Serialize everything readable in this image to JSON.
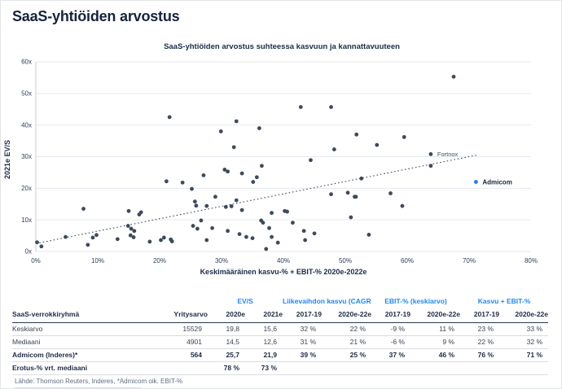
{
  "title": "SaaS-yhtiöiden arvostus",
  "colors": {
    "title_navy": "#16233e",
    "point": "#3e4a5c",
    "admicom_blue": "#1f7cf2",
    "table_header_blue": "#1e88f5",
    "gridline": "#e7eaf1",
    "axis_line": "#c8cdd7"
  },
  "chart_data": [
    {
      "type": "scatter",
      "title": "SaaS-yhtiöiden arvostus suhteessa kasvuun ja kannattavuuteen",
      "xlabel": "Keskimääräinen kasvu-% + EBIT-% 2020e-2022e",
      "ylabel": "2021e EV/S",
      "xlim": [
        0,
        80
      ],
      "ylim": [
        0,
        60
      ],
      "x_tick_values": [
        0,
        10,
        20,
        30,
        40,
        50,
        60,
        70,
        80
      ],
      "x_tick_labels": [
        "0%",
        "10%",
        "20%",
        "30%",
        "40%",
        "50%",
        "60%",
        "70%",
        "80%"
      ],
      "y_tick_values": [
        0,
        10,
        20,
        30,
        40,
        50,
        60
      ],
      "y_tick_labels": [
        "0x",
        "10x",
        "20x",
        "30x",
        "40x",
        "50x",
        "60x"
      ],
      "grid": "horizontal",
      "legend": "none",
      "point_color": "#3e4a5c",
      "series": [
        {
          "name": "SaaS-verrokkiryhmä",
          "points": [
            [
              0.2,
              2.9
            ],
            [
              0.9,
              1.6
            ],
            [
              4.8,
              4.6
            ],
            [
              7.7,
              13.5
            ],
            [
              8.4,
              2.1
            ],
            [
              9.2,
              4.4
            ],
            [
              9.8,
              5.2
            ],
            [
              13.2,
              3.9
            ],
            [
              14.9,
              8.1
            ],
            [
              15.0,
              12.8
            ],
            [
              15.3,
              5.1
            ],
            [
              15.4,
              7.2
            ],
            [
              15.8,
              4.5
            ],
            [
              15.9,
              6.5
            ],
            [
              16.7,
              11.7
            ],
            [
              17.0,
              12.4
            ],
            [
              18.4,
              3.1
            ],
            [
              20.2,
              3.6
            ],
            [
              20.7,
              4.4
            ],
            [
              21.1,
              22.2
            ],
            [
              21.6,
              42.5
            ],
            [
              21.8,
              3.8
            ],
            [
              22.0,
              3.2
            ],
            [
              23.7,
              21.8
            ],
            [
              25.2,
              19.8
            ],
            [
              25.4,
              8.1
            ],
            [
              25.7,
              15.8
            ],
            [
              25.9,
              14.5
            ],
            [
              26.1,
              7.2
            ],
            [
              26.7,
              9.8
            ],
            [
              27.1,
              24.1
            ],
            [
              27.6,
              14.4
            ],
            [
              27.6,
              3.6
            ],
            [
              28.5,
              7.4
            ],
            [
              29.0,
              17.3
            ],
            [
              29.9,
              38.0
            ],
            [
              30.5,
              25.9
            ],
            [
              30.7,
              14.1
            ],
            [
              31.0,
              25.3
            ],
            [
              31.0,
              6.5
            ],
            [
              31.6,
              14.3
            ],
            [
              32.0,
              33.0
            ],
            [
              32.4,
              41.2
            ],
            [
              32.4,
              16.2
            ],
            [
              32.9,
              5.5
            ],
            [
              33.3,
              24.7
            ],
            [
              33.3,
              13.1
            ],
            [
              34.0,
              4.6
            ],
            [
              35.0,
              4.2
            ],
            [
              35.1,
              22.0
            ],
            [
              35.7,
              23.5
            ],
            [
              36.1,
              39.0
            ],
            [
              36.4,
              9.8
            ],
            [
              36.5,
              27.1
            ],
            [
              36.7,
              9.1
            ],
            [
              37.2,
              0.8
            ],
            [
              37.7,
              7.4
            ],
            [
              38.1,
              12.2
            ],
            [
              38.1,
              4.6
            ],
            [
              39.1,
              2.8
            ],
            [
              40.2,
              12.8
            ],
            [
              40.6,
              12.6
            ],
            [
              41.5,
              9.1
            ],
            [
              42.8,
              45.7
            ],
            [
              43.3,
              6.5
            ],
            [
              43.5,
              3.6
            ],
            [
              44.4,
              28.9
            ],
            [
              45.0,
              5.7
            ],
            [
              47.7,
              45.7
            ],
            [
              47.7,
              18.1
            ],
            [
              48.2,
              32.3
            ],
            [
              50.4,
              18.6
            ],
            [
              50.9,
              10.8
            ],
            [
              51.5,
              17.3
            ],
            [
              51.7,
              17.3
            ],
            [
              51.8,
              37.0
            ],
            [
              52.6,
              23.1
            ],
            [
              53.8,
              5.3
            ],
            [
              55.1,
              33.7
            ],
            [
              57.3,
              18.4
            ],
            [
              59.2,
              14.4
            ],
            [
              59.5,
              36.2
            ],
            [
              63.8,
              27.1
            ],
            [
              67.5,
              55.3
            ]
          ]
        }
      ],
      "annotations": [
        {
          "label": "Fortnox",
          "x": 63.8,
          "y": 30.8,
          "color": "#3e4a5c",
          "bold": false
        },
        {
          "label": "Admicom",
          "x": 71.1,
          "y": 22.0,
          "color": "#1f7cf2",
          "bold": true
        }
      ],
      "trendline": {
        "x1": 0,
        "y1": 2.5,
        "x2": 71.5,
        "y2": 30.6,
        "style": "dotted"
      }
    },
    {
      "type": "table",
      "group_headers": [
        {
          "label": "",
          "span": 2
        },
        {
          "label": "EV/S",
          "span": 2
        },
        {
          "label": "Liikevaihdon kasvu (CAGR)",
          "span": 2
        },
        {
          "label": "EBIT-% (keskiarvo)",
          "span": 2
        },
        {
          "label": "Kasvu + EBIT-%",
          "span": 2
        }
      ],
      "columns": [
        "SaaS-verrokkiryhmä",
        "Yritysarvo",
        "2020e",
        "2021e",
        "2017-19",
        "2020e-22e",
        "2017-19",
        "2020e-22e",
        "2017-19",
        "2020e-22e"
      ],
      "rows": [
        {
          "label": "Keskiarvo",
          "values": [
            "15529",
            "19,8",
            "15,6",
            "32 %",
            "22 %",
            "-9 %",
            "11 %",
            "23 %",
            "33 %"
          ],
          "bold": false
        },
        {
          "label": "Mediaani",
          "values": [
            "4901",
            "14,5",
            "12,6",
            "31 %",
            "21 %",
            "-6 %",
            "9 %",
            "22 %",
            "32 %"
          ],
          "bold": false
        },
        {
          "label": "Admicom (Inderes)*",
          "values": [
            "564",
            "25,7",
            "21,9",
            "39 %",
            "25 %",
            "37 %",
            "46 %",
            "76 %",
            "71 %"
          ],
          "bold": true
        },
        {
          "label": "Erotus-% vrt. mediaani",
          "values": [
            "",
            "78 %",
            "73 %",
            "",
            "",
            "",
            "",
            "",
            ""
          ],
          "bold": true
        }
      ],
      "source_note": "Lähde: Thomson Reuters, Inderes, *Admicom oik. EBIT-%"
    }
  ]
}
